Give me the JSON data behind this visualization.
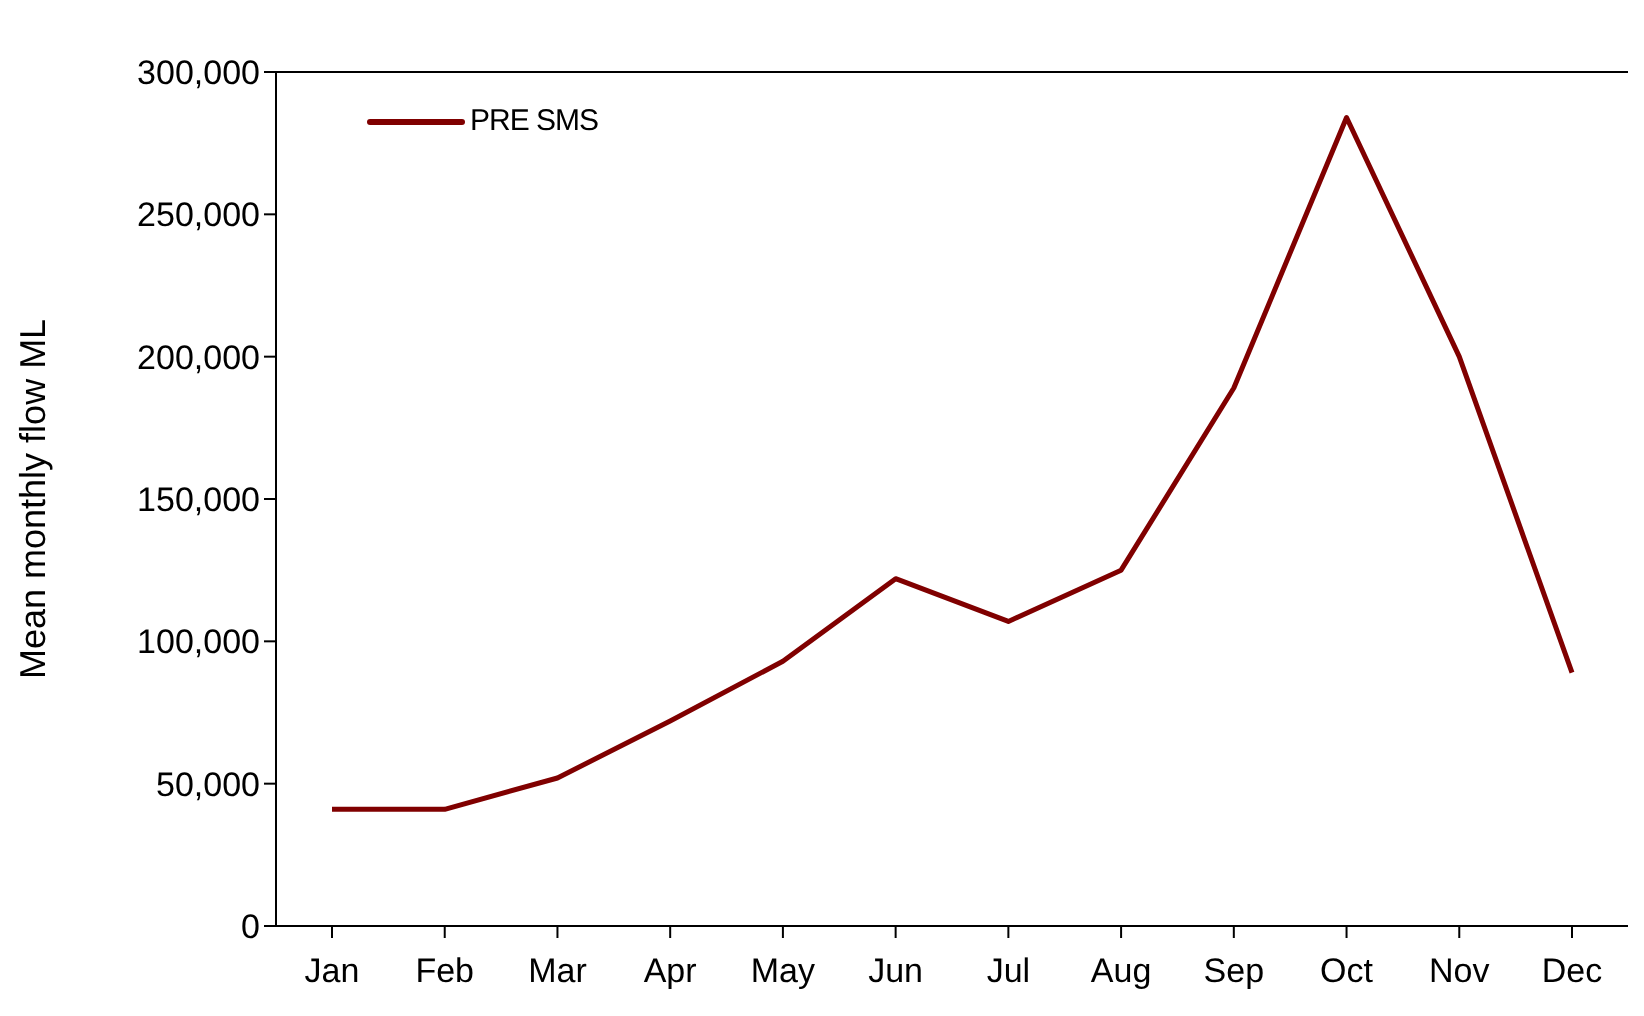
{
  "chart_data": {
    "type": "line",
    "ylabel": "Mean monthly flow ML",
    "categories": [
      "Jan",
      "Feb",
      "Mar",
      "Apr",
      "May",
      "Jun",
      "Jul",
      "Aug",
      "Sep",
      "Oct",
      "Nov",
      "Dec"
    ],
    "series": [
      {
        "name": "PRE SMS",
        "color": "#800000",
        "values": [
          41000,
          41000,
          52000,
          72000,
          93000,
          122000,
          107000,
          125000,
          189000,
          284000,
          200000,
          89000
        ]
      }
    ],
    "ylim": [
      0,
      300000
    ],
    "yticks": [
      0,
      {
        "value": 50000,
        "label": "50,000"
      },
      {
        "value": 100000,
        "label": "100,000"
      },
      {
        "value": 150000,
        "label": "150,000"
      },
      {
        "value": 200000,
        "label": "200,000"
      },
      {
        "value": 250000,
        "label": "250,000"
      },
      {
        "value": 300000,
        "label": "300,000"
      }
    ],
    "grid": false,
    "legend": "top left",
    "marker": "none",
    "line_style": "solid"
  }
}
